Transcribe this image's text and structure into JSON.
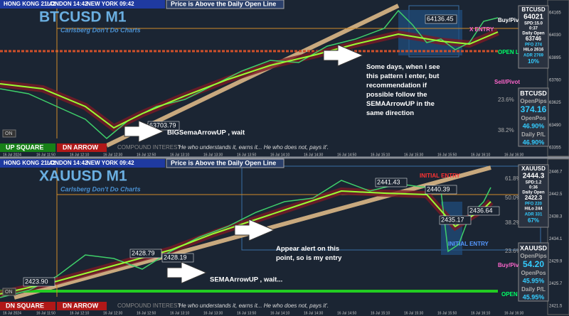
{
  "panels": [
    {
      "clocks": [
        "HONG KONG 21:42",
        "LONDON 14:42",
        "NEW YORK 09:42"
      ],
      "status": "Price is Above the Daily Open Line",
      "title": "BTCUSD M1",
      "subtitle": "Carlsberg Don't Do Charts",
      "price_labels": [
        "64136.45",
        "63703.79"
      ],
      "line_labels": [
        "Buy/Pivot",
        "X ENTRY",
        "OPEN L",
        "Sell/Pivot"
      ],
      "fib": [
        "23.6%",
        "38.2%"
      ],
      "info": {
        "symbol": "BTCUSD",
        "price": "64021",
        "spread": "SPD:15.0",
        "timer": "0:37",
        "open_label": "Daily Open",
        "open": "63746",
        "pfo": "PFO  274",
        "hilo": "HiLo 2616",
        "adr": "ADR 2769",
        "pct": "10%"
      },
      "pl": {
        "symbol": "BTCUSD",
        "pips_label": "OpenPips",
        "pips": "374.16",
        "pos_label": "OpenPos",
        "pos": "46.90%",
        "daily_label": "Daily P/L",
        "daily": "46.90%"
      },
      "notes": [
        "Some days, when i see this pattern i enter, but recommendation if possible follow the SEMAArrowUP in the same direction",
        "BIGSemaArrowUP , wait"
      ],
      "buttons": [
        "ON",
        "UP SQUARE",
        "DN ARROW",
        "COMPOUND INTEREST"
      ],
      "quote": "'He who understands it, earns it... He who does not, pays it'.",
      "yaxis": [
        "64165",
        "64030",
        "63895",
        "63760",
        "63625",
        "63490",
        "63355"
      ],
      "xaxis": [
        "16 Jul 2024",
        "16 Jul 11:50",
        "16 Jul 12:10",
        "16 Jul 12:30",
        "16 Jul 12:50",
        "16 Jul 13:10",
        "16 Jul 13:30",
        "16 Jul 13:50",
        "16 Jul 14:10",
        "16 Jul 14:30",
        "16 Jul 14:50",
        "16 Jul 15:10",
        "16 Jul 15:30",
        "16 Jul 15:50",
        "16 Jul 16:10",
        "16 Jul 16:30"
      ]
    },
    {
      "clocks": [
        "HONG KONG 21:42",
        "LONDON 14:42",
        "NEW YORK 09:42"
      ],
      "status": "Price is Above the Daily Open Line",
      "title": "XAUUSD M1",
      "subtitle": "Carlsberg Don't Do Charts",
      "price_labels": [
        "2441.43",
        "2440.39",
        "2436.64",
        "2435.17",
        "2428.79",
        "2428.19",
        "2423.90"
      ],
      "line_labels": [
        "INITIAL ENTRY",
        "INITIAL ENTRY",
        "Buy/Pivot",
        "OPEN L"
      ],
      "fib": [
        "61.8%",
        "50.0%",
        "38.2%",
        "23.6%"
      ],
      "info": {
        "symbol": "XAUUSD",
        "price": "2444.3",
        "spread": "SPD:1.2",
        "timer": "0:36",
        "open_label": "Daily Open",
        "open": "2422.3",
        "pfo": "PFO  220",
        "hilo": "HiLo  244",
        "adr": "ADR  331",
        "pct": "67%"
      },
      "pl": {
        "symbol": "XAUUSD",
        "pips_label": "OpenPips",
        "pips": "54.20",
        "pos_label": "OpenPos",
        "pos": "45.95%",
        "daily_label": "Daily P/L",
        "daily": "45.95%"
      },
      "notes": [
        "Appear alert on this point, so is my entry",
        "SEMAArrowUP , wait..."
      ],
      "buttons": [
        "ON",
        "DN SQUARE",
        "DN ARROW",
        "COMPOUND INTEREST"
      ],
      "quote": "'He who understands it, earns it... He who does not, pays it'.",
      "yaxis": [
        "2446.7",
        "2442.5",
        "2438.3",
        "2434.1",
        "2429.9",
        "2425.7",
        "2421.5"
      ],
      "xaxis": [
        "16 Jul 2024",
        "16 Jul 11:50",
        "16 Jul 12:10",
        "16 Jul 12:30",
        "16 Jul 12:50",
        "16 Jul 13:10",
        "16 Jul 13:30",
        "16 Jul 13:50",
        "16 Jul 14:10",
        "16 Jul 14:30",
        "16 Jul 14:50",
        "16 Jul 15:10",
        "16 Jul 15:30",
        "16 Jul 15:50",
        "16 Jul 16:10",
        "16 Jul 16:30"
      ]
    }
  ]
}
